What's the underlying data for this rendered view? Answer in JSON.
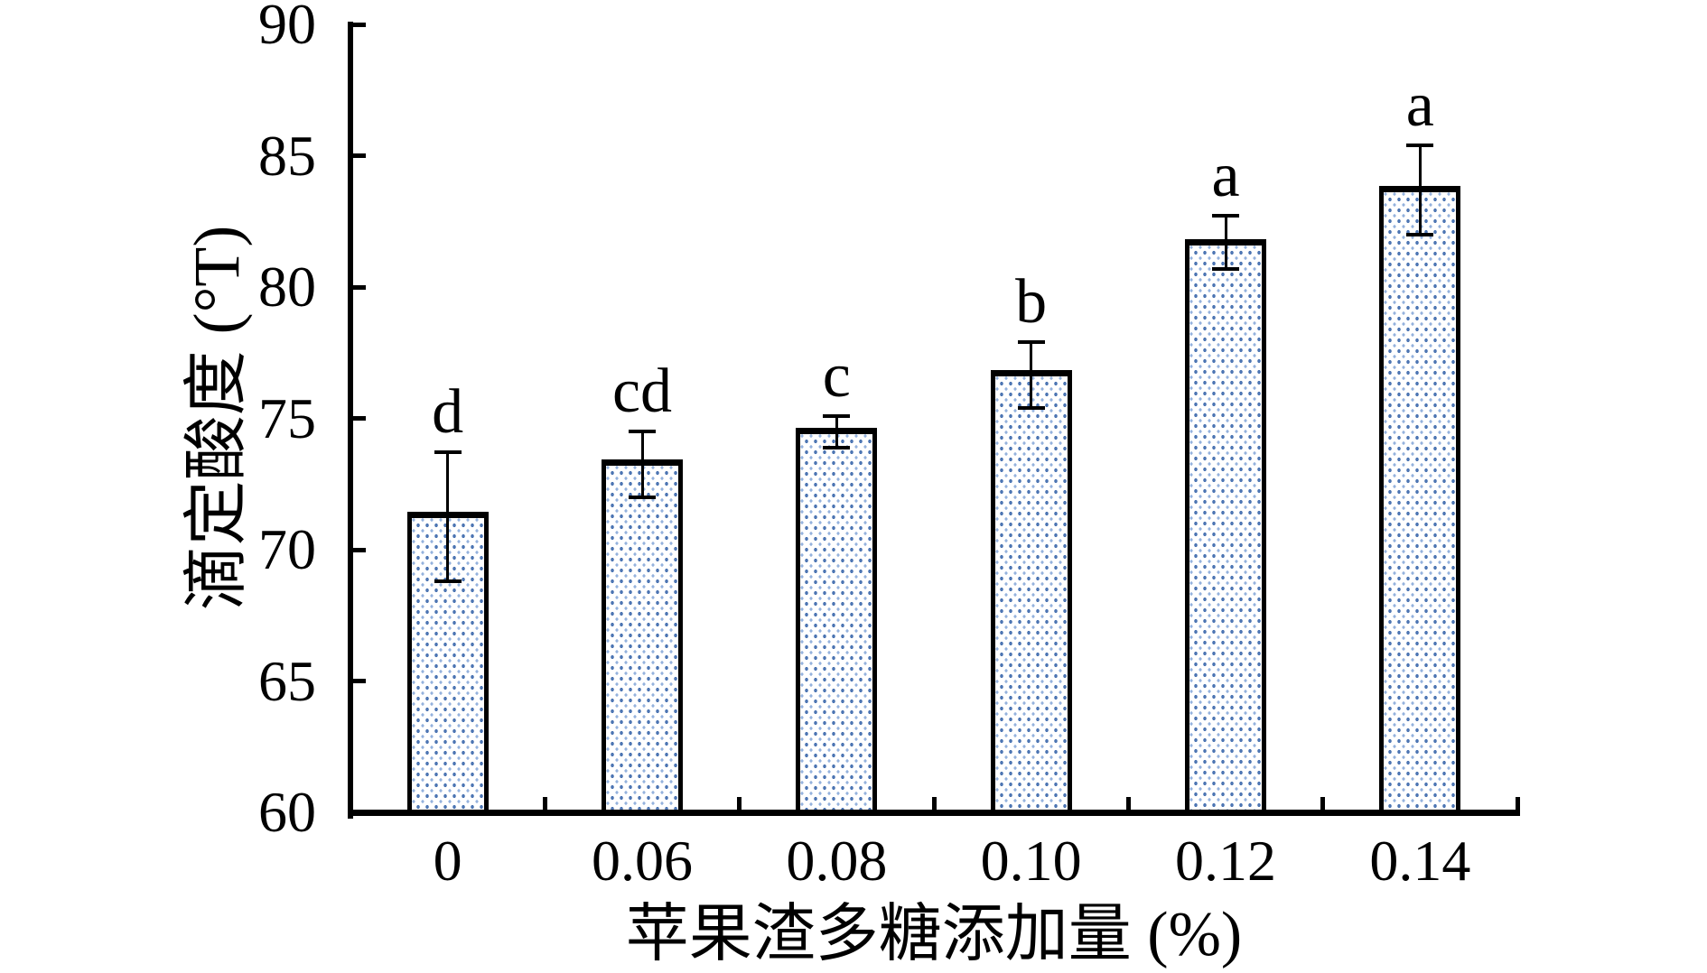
{
  "figure": {
    "background": "#ffffff",
    "axis_color": "#000000",
    "text_color": "#000000"
  },
  "chart_data": {
    "type": "bar",
    "title": "",
    "categories": [
      "0",
      "0.06",
      "0.08",
      "0.10",
      "0.12",
      "0.14"
    ],
    "values": [
      71.3,
      73.3,
      74.5,
      76.7,
      81.7,
      83.7
    ],
    "error_up": [
      2.4,
      1.2,
      0.6,
      1.2,
      1.0,
      1.7
    ],
    "error_down": [
      2.5,
      1.3,
      0.6,
      1.3,
      1.0,
      1.7
    ],
    "significance_letters": [
      "d",
      "cd",
      "c",
      "b",
      "a",
      "a"
    ],
    "xlabel": "苹果渣多糖添加量 (%)",
    "ylabel": "滴定酸度 (°T)",
    "ylim": [
      60,
      90
    ],
    "yticks": [
      60,
      65,
      70,
      75,
      80,
      85,
      90
    ],
    "grid": false,
    "legend": "none",
    "bar_style": {
      "fill": "#ffffff",
      "dot_color": "#3f6bad",
      "dot_color_light": "#82a5d7",
      "border_color": "#000000"
    }
  }
}
